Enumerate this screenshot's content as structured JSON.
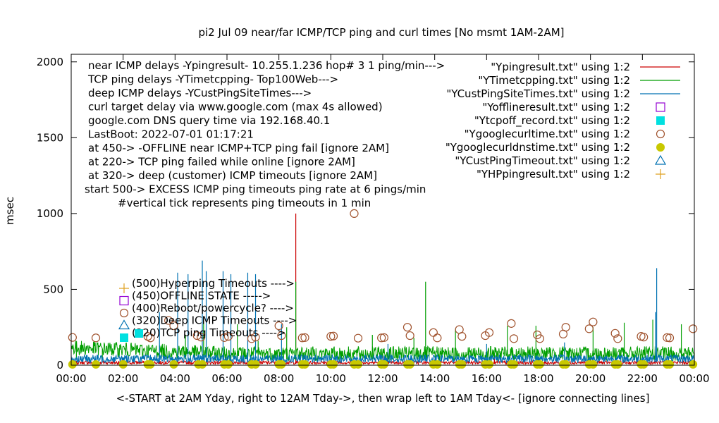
{
  "chart_data": {
    "type": "line",
    "title": "pi2 Jul 09  near/far ICMP/TCP ping and curl times [No msmt 1AM-2AM]",
    "xlabel": "<-START at 2AM Yday, right to 12AM Tday->, then wrap left to 1AM Tday<- [ignore connecting lines]",
    "ylabel": "msec",
    "xlim": [
      0,
      24
    ],
    "ylim": [
      0,
      2050
    ],
    "x_ticks": [
      {
        "value": 0,
        "label": "00:00"
      },
      {
        "value": 2,
        "label": "02:00"
      },
      {
        "value": 4,
        "label": "04:00"
      },
      {
        "value": 6,
        "label": "06:00"
      },
      {
        "value": 8,
        "label": "08:00"
      },
      {
        "value": 10,
        "label": "10:00"
      },
      {
        "value": 12,
        "label": "12:00"
      },
      {
        "value": 14,
        "label": "14:00"
      },
      {
        "value": 16,
        "label": "16:00"
      },
      {
        "value": 18,
        "label": "18:00"
      },
      {
        "value": 20,
        "label": "20:00"
      },
      {
        "value": 22,
        "label": "22:00"
      },
      {
        "value": 24,
        "label": "00:00"
      }
    ],
    "y_ticks": [
      {
        "value": 0,
        "label": "0"
      },
      {
        "value": 500,
        "label": "500"
      },
      {
        "value": 1000,
        "label": "1000"
      },
      {
        "value": 1500,
        "label": "1500"
      },
      {
        "value": 2000,
        "label": "2000"
      }
    ],
    "info_lines": [
      "near ICMP delays -Ypingresult- 10.255.1.236 hop# 3 1 ping/min--->",
      "TCP ping delays -YTimetcpping- Top100Web--->",
      "deep ICMP delays -YCustPingSiteTimes--->",
      "curl target delay via www.google.com (max 4s allowed)",
      "google.com DNS query time via 192.168.40.1",
      "LastBoot: 2022-07-01 01:17:21",
      "at 450-> -OFFLINE near ICMP+TCP ping fail [ignore 2AM]",
      "at 220-> TCP ping failed while online [ignore 2AM]",
      "at 320-> deep (customer) ICMP timeouts [ignore 2AM]",
      "start 500-> EXCESS ICMP ping timeouts ping rate at 6 pings/min",
      "#vertical tick represents ping timeouts in 1 min"
    ],
    "annotations": [
      {
        "label": "(500)Hyperping Timeouts ---->",
        "marker": "plus",
        "color": "#dfa020"
      },
      {
        "label": "(450)OFFLINE STATE ----->",
        "marker": "open-square",
        "color": "#9400d3"
      },
      {
        "label": "(400)Reboot/powercycle? ---->",
        "marker": "open-circle",
        "color": "#a0522d"
      },
      {
        "label": "(320)Deep ICMP Timeouts ---->",
        "marker": "open-triangle",
        "color": "#0072b2"
      },
      {
        "label": "(220)TCP ping Timeouts ---->",
        "marker": "filled-square",
        "color": "#00e0e0"
      }
    ],
    "legend_position": "top-right",
    "series": [
      {
        "name": "\"Ypingresult.txt\" using 1:2",
        "style": "line",
        "color": "#cc0000",
        "baseline": 18,
        "spikes": [
          [
            8.65,
            1000
          ],
          [
            4.1,
            70
          ],
          [
            12.0,
            60
          ],
          [
            16.3,
            55
          ]
        ]
      },
      {
        "name": "\"YTimetcpping.txt\" using 1:2",
        "style": "line",
        "color": "#009e00",
        "baseline": 80,
        "spikes": [
          [
            0.2,
            130
          ],
          [
            1.2,
            110
          ],
          [
            4.4,
            200
          ],
          [
            5.1,
            300
          ],
          [
            6.4,
            270
          ],
          [
            7.2,
            160
          ],
          [
            8.3,
            250
          ],
          [
            8.65,
            550
          ],
          [
            11.6,
            200
          ],
          [
            13.2,
            180
          ],
          [
            13.65,
            550
          ],
          [
            14.8,
            240
          ],
          [
            16.8,
            260
          ],
          [
            17.9,
            260
          ],
          [
            20.1,
            250
          ],
          [
            21.3,
            280
          ],
          [
            22.4,
            300
          ],
          [
            23.5,
            270
          ]
        ]
      },
      {
        "name": "\"YCustPingSiteTimes.txt\" using 1:2",
        "style": "line",
        "color": "#0072b2",
        "baseline": 45,
        "spikes": [
          [
            4.1,
            610
          ],
          [
            4.5,
            600
          ],
          [
            5.05,
            690
          ],
          [
            5.2,
            620
          ],
          [
            5.85,
            620
          ],
          [
            6.15,
            600
          ],
          [
            6.8,
            610
          ],
          [
            7.1,
            600
          ],
          [
            3.4,
            350
          ],
          [
            8.1,
            270
          ],
          [
            12.2,
            140
          ],
          [
            16.0,
            140
          ],
          [
            19.0,
            150
          ],
          [
            22.55,
            640
          ],
          [
            22.5,
            350
          ]
        ]
      },
      {
        "name": "\"Yofflineresult.txt\" using 1:2",
        "style": "open-square",
        "color": "#9400d3",
        "points": []
      },
      {
        "name": "\"Ytcpoff_record.txt\" using 1:2",
        "style": "filled-square",
        "color": "#00e0e0",
        "points": []
      },
      {
        "name": "\"Ygooglecurltime.txt\" using 1:2",
        "style": "open-circle",
        "color": "#a0522d",
        "points": [
          [
            0.05,
            183
          ],
          [
            0.95,
            180
          ],
          [
            2.95,
            190
          ],
          [
            3.05,
            180
          ],
          [
            3.75,
            295
          ],
          [
            3.95,
            260
          ],
          [
            4.85,
            195
          ],
          [
            5.0,
            185
          ],
          [
            5.9,
            182
          ],
          [
            6.05,
            190
          ],
          [
            6.95,
            175
          ],
          [
            7.1,
            185
          ],
          [
            8.0,
            260
          ],
          [
            8.1,
            195
          ],
          [
            8.9,
            180
          ],
          [
            9.0,
            182
          ],
          [
            10.0,
            190
          ],
          [
            10.1,
            192
          ],
          [
            10.9,
            1000
          ],
          [
            11.05,
            178
          ],
          [
            11.95,
            180
          ],
          [
            12.05,
            182
          ],
          [
            12.95,
            250
          ],
          [
            13.05,
            195
          ],
          [
            13.95,
            215
          ],
          [
            14.1,
            180
          ],
          [
            14.95,
            235
          ],
          [
            15.05,
            190
          ],
          [
            15.95,
            195
          ],
          [
            16.1,
            215
          ],
          [
            16.95,
            275
          ],
          [
            17.05,
            175
          ],
          [
            17.95,
            200
          ],
          [
            18.05,
            175
          ],
          [
            18.95,
            205
          ],
          [
            19.05,
            250
          ],
          [
            19.95,
            240
          ],
          [
            20.1,
            285
          ],
          [
            20.95,
            210
          ],
          [
            21.05,
            175
          ],
          [
            21.95,
            190
          ],
          [
            22.05,
            185
          ],
          [
            22.95,
            182
          ],
          [
            23.05,
            180
          ],
          [
            23.95,
            240
          ]
        ]
      },
      {
        "name": "\"Ygooglecurldnstime.txt\" using 1:2",
        "style": "filled-circle",
        "color": "#c8c800",
        "points": [
          [
            0.05,
            5
          ],
          [
            0.95,
            5
          ],
          [
            2.0,
            5
          ],
          [
            2.95,
            5
          ],
          [
            3.05,
            5
          ],
          [
            3.95,
            5
          ],
          [
            4.9,
            5
          ],
          [
            5.05,
            5
          ],
          [
            5.9,
            5
          ],
          [
            6.05,
            5
          ],
          [
            6.95,
            5
          ],
          [
            7.1,
            5
          ],
          [
            8.0,
            5
          ],
          [
            8.1,
            5
          ],
          [
            8.9,
            5
          ],
          [
            9.0,
            5
          ],
          [
            10.0,
            5
          ],
          [
            10.1,
            5
          ],
          [
            10.9,
            5
          ],
          [
            11.05,
            5
          ],
          [
            11.95,
            5
          ],
          [
            12.05,
            5
          ],
          [
            12.95,
            5
          ],
          [
            13.05,
            5
          ],
          [
            13.95,
            5
          ],
          [
            14.1,
            5
          ],
          [
            14.95,
            5
          ],
          [
            15.05,
            5
          ],
          [
            15.95,
            5
          ],
          [
            16.1,
            5
          ],
          [
            16.95,
            5
          ],
          [
            17.05,
            5
          ],
          [
            17.95,
            5
          ],
          [
            18.05,
            5
          ],
          [
            18.95,
            5
          ],
          [
            19.05,
            5
          ],
          [
            19.95,
            5
          ],
          [
            20.1,
            5
          ],
          [
            20.95,
            5
          ],
          [
            21.05,
            5
          ],
          [
            21.95,
            5
          ],
          [
            22.05,
            5
          ],
          [
            22.95,
            5
          ],
          [
            23.05,
            5
          ],
          [
            23.95,
            5
          ]
        ]
      },
      {
        "name": "\"YCustPingTimeout.txt\" using 1:2",
        "style": "open-triangle",
        "color": "#0072b2",
        "points": []
      },
      {
        "name": "\"YHPpingresult.txt\" using 1:2",
        "style": "plus",
        "color": "#dfa020",
        "points": []
      }
    ]
  }
}
